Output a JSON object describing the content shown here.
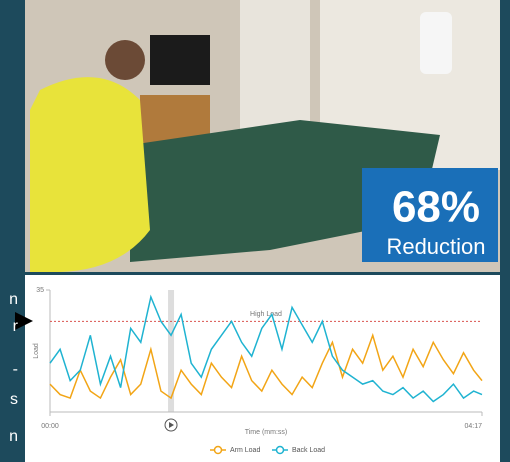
{
  "left_fragments": [
    "n",
    "r",
    "-",
    "s",
    "n"
  ],
  "badge": {
    "value": "68%",
    "caption": "Reduction"
  },
  "chart_data": {
    "type": "line",
    "x": [
      0,
      6,
      12,
      18,
      24,
      30,
      36,
      42,
      48,
      54,
      60,
      66,
      72,
      78,
      84,
      90,
      96,
      102,
      108,
      114,
      120,
      126,
      132,
      138,
      144,
      150,
      156,
      162,
      168,
      174,
      180,
      186,
      192,
      198,
      204,
      210,
      216,
      222,
      228,
      234,
      240,
      246,
      252,
      257
    ],
    "series": [
      {
        "name": "Arm Load",
        "color": "#f2a516",
        "values": [
          8,
          5,
          4,
          12,
          6,
          4,
          10,
          15,
          5,
          8,
          18,
          6,
          4,
          12,
          8,
          5,
          14,
          10,
          7,
          16,
          9,
          6,
          12,
          8,
          5,
          10,
          7,
          14,
          20,
          10,
          18,
          14,
          22,
          12,
          16,
          10,
          18,
          13,
          20,
          15,
          11,
          17,
          12,
          9
        ]
      },
      {
        "name": "Back Load",
        "color": "#1fb3d1",
        "values": [
          14,
          18,
          9,
          12,
          22,
          8,
          16,
          7,
          24,
          20,
          33,
          26,
          22,
          28,
          14,
          10,
          18,
          22,
          26,
          20,
          16,
          24,
          28,
          18,
          30,
          25,
          20,
          26,
          16,
          12,
          10,
          8,
          9,
          6,
          5,
          7,
          4,
          6,
          3,
          5,
          8,
          4,
          6,
          5
        ]
      }
    ],
    "xlim": [
      0,
      257
    ],
    "xticks": [
      {
        "value": 0,
        "label": "00:00"
      },
      {
        "value": 257,
        "label": "04:17"
      }
    ],
    "ylim": [
      0,
      35
    ],
    "yticks": [
      35
    ],
    "xlabel": "Time (mm:ss)",
    "ylabel": "Load",
    "reference_line": {
      "label": "High Load",
      "value": 26,
      "color": "#d9534f"
    },
    "playhead": 72
  }
}
